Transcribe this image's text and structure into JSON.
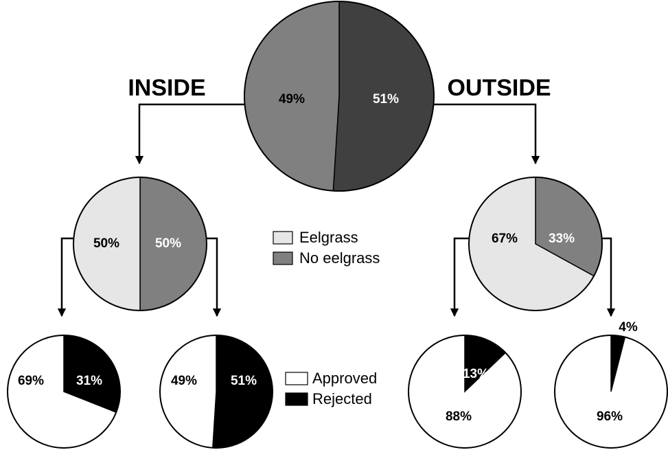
{
  "annotations": {
    "inside": "INSIDE",
    "outside": "OUTSIDE"
  },
  "legends": [
    {
      "entries": [
        {
          "name": "Eelgrass",
          "color": "#e6e6e6"
        },
        {
          "name": "No eelgrass",
          "color": "#808080"
        }
      ]
    },
    {
      "entries": [
        {
          "name": "Approved",
          "color": "#ffffff"
        },
        {
          "name": "Rejected",
          "color": "#000000"
        }
      ]
    }
  ],
  "chart_data": [
    {
      "type": "pie",
      "values": [
        51,
        49
      ],
      "value_labels": [
        "51%",
        "49%"
      ],
      "colors": [
        "#404040",
        "#808080"
      ],
      "label_colors": [
        "#ffffff",
        "#000000"
      ]
    },
    {
      "type": "pie",
      "values": [
        50,
        50
      ],
      "value_labels": [
        "50%",
        "50%"
      ],
      "colors": [
        "#808080",
        "#e6e6e6"
      ],
      "label_colors": [
        "#ffffff",
        "#000000"
      ]
    },
    {
      "type": "pie",
      "values": [
        33,
        67
      ],
      "value_labels": [
        "33%",
        "67%"
      ],
      "colors": [
        "#808080",
        "#e6e6e6"
      ],
      "label_colors": [
        "#ffffff",
        "#000000"
      ]
    },
    {
      "type": "pie",
      "values": [
        31,
        69
      ],
      "value_labels": [
        "31%",
        "69%"
      ],
      "colors": [
        "#000000",
        "#ffffff"
      ],
      "label_colors": [
        "#ffffff",
        "#000000"
      ]
    },
    {
      "type": "pie",
      "values": [
        51,
        49
      ],
      "value_labels": [
        "51%",
        "49%"
      ],
      "colors": [
        "#000000",
        "#ffffff"
      ],
      "label_colors": [
        "#ffffff",
        "#000000"
      ]
    },
    {
      "type": "pie",
      "values": [
        13,
        88
      ],
      "value_labels": [
        "13%",
        "88%"
      ],
      "colors": [
        "#000000",
        "#ffffff"
      ],
      "label_colors": [
        "#ffffff",
        "#000000"
      ]
    },
    {
      "type": "pie",
      "values": [
        4,
        96
      ],
      "value_labels": [
        "4%",
        "96%"
      ],
      "colors": [
        "#000000",
        "#ffffff"
      ],
      "label_colors": [
        "#000000",
        "#000000"
      ]
    }
  ]
}
